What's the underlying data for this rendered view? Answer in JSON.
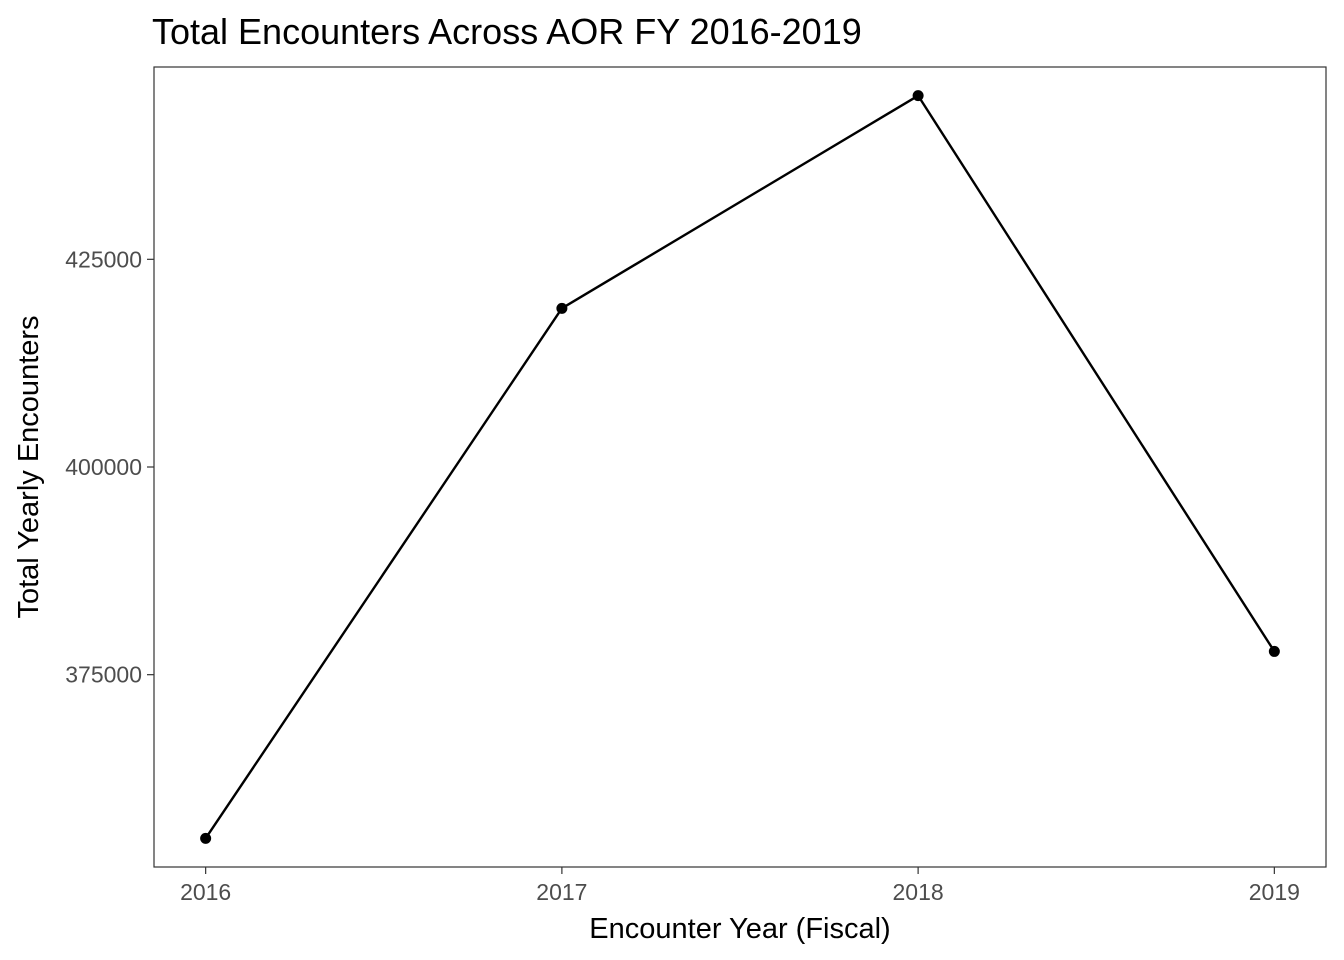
{
  "chart_data": {
    "type": "line",
    "title": "Total Encounters Across AOR FY 2016-2019",
    "xlabel": "Encounter Year (Fiscal)",
    "ylabel": "Total Yearly Encounters",
    "x": [
      2016,
      2017,
      2018,
      2019
    ],
    "values": [
      355300,
      419100,
      444700,
      377800
    ],
    "x_ticks": [
      "2016",
      "2017",
      "2018",
      "2019"
    ],
    "y_ticks": [
      375000,
      400000,
      425000
    ],
    "y_tick_labels": [
      "375000",
      "400000",
      "425000"
    ],
    "xlim": [
      2015.855,
      2019.145
    ],
    "ylim": [
      351850,
      448150
    ],
    "grid": false,
    "line_color": "#000000",
    "point_color": "#000000",
    "panel_border_color": "#333333",
    "tick_label_color": "#4d4d4d"
  }
}
